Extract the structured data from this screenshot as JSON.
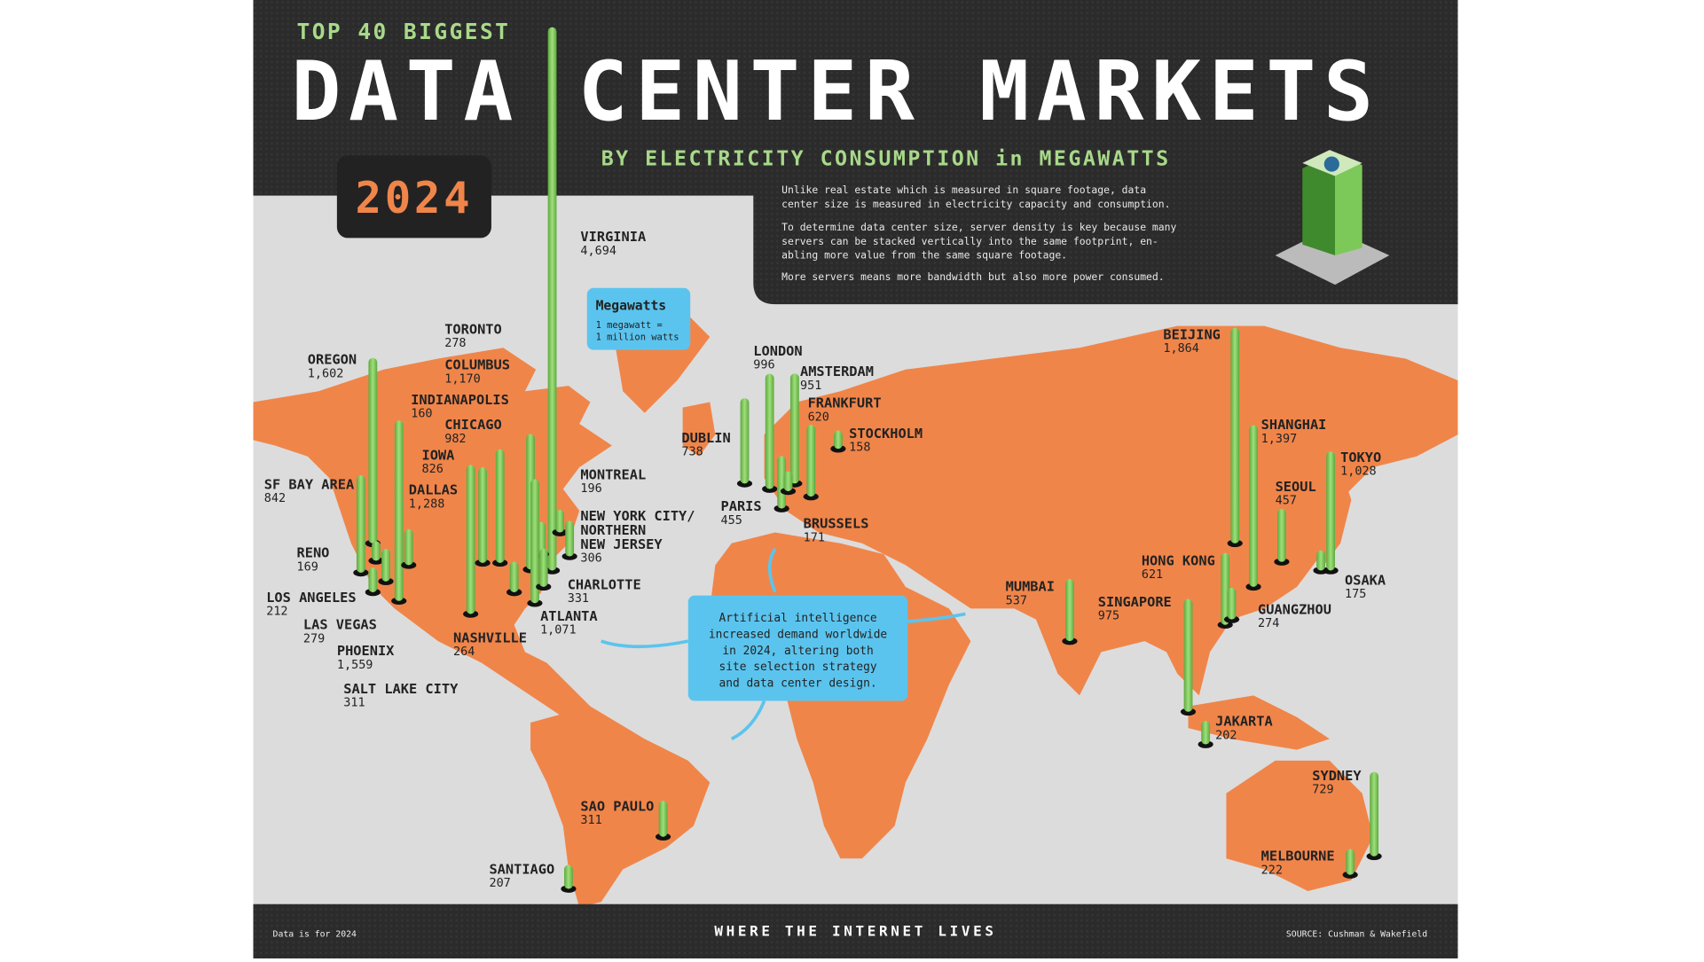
{
  "header": {
    "kicker": "TOP 40 BIGGEST",
    "title": "DATA CENTER MARKETS",
    "subtitle": "BY ELECTRICITY CONSUMPTION in MEGAWATTS",
    "year": "2024"
  },
  "intro": [
    "Unlike real estate which is measured in square footage, data",
    "center size is measured in electricity capacity and consumption.",
    "To determine data center size, server density is key because many",
    "servers can be stacked vertically into the same footprint, en-",
    "abling more value from the same square footage.",
    "More servers means more bandwidth but also more power consumed."
  ],
  "legend": {
    "title": "Megawatts",
    "line1": "1 megawatt =",
    "line2": "1 million watts"
  },
  "callout": [
    "Artificial intelligence",
    "increased demand worldwide",
    "in 2024, altering both",
    "site selection strategy",
    "and data center design."
  ],
  "footer": {
    "note": "Data is for 2024",
    "brand": "WHERE THE INTERNET LIVES",
    "source": "SOURCE: Cushman & Wakefield"
  },
  "colors": {
    "background": "#2b2b2b",
    "ocean": "#d9d9d9",
    "land": "#f0854a",
    "bar": "#7cc95a",
    "year": "#f0854a",
    "kicker": "#a8d98a",
    "callout": "#5bc4ee"
  },
  "chart_data": {
    "type": "bar",
    "unit": "Megawatts",
    "markets": [
      {
        "name": "VIRGINIA",
        "value": 4694
      },
      {
        "name": "OREGON",
        "value": 1602
      },
      {
        "name": "SF BAY AREA",
        "value": 842
      },
      {
        "name": "RENO",
        "value": 169
      },
      {
        "name": "LOS ANGELES",
        "value": 212
      },
      {
        "name": "LAS VEGAS",
        "value": 279
      },
      {
        "name": "PHOENIX",
        "value": 1559
      },
      {
        "name": "SALT LAKE CITY",
        "value": 311
      },
      {
        "name": "DALLAS",
        "value": 1288
      },
      {
        "name": "IOWA",
        "value": 826
      },
      {
        "name": "CHICAGO",
        "value": 982
      },
      {
        "name": "INDIANAPOLIS",
        "value": 160
      },
      {
        "name": "COLUMBUS",
        "value": 1170
      },
      {
        "name": "TORONTO",
        "value": 278
      },
      {
        "name": "ATLANTA",
        "value": 1071
      },
      {
        "name": "NASHVILLE",
        "value": 264
      },
      {
        "name": "CHARLOTTE",
        "value": 331
      },
      {
        "name": "MONTREAL",
        "value": 196
      },
      {
        "name": "NEW YORK CITY/ NORTHERN NEW JERSEY",
        "value": 306
      },
      {
        "name": "DUBLIN",
        "value": 738
      },
      {
        "name": "LONDON",
        "value": 996
      },
      {
        "name": "AMSTERDAM",
        "value": 951
      },
      {
        "name": "FRANKFURT",
        "value": 620
      },
      {
        "name": "PARIS",
        "value": 455
      },
      {
        "name": "BRUSSELS",
        "value": 171
      },
      {
        "name": "STOCKHOLM",
        "value": 158
      },
      {
        "name": "BEIJING",
        "value": 1864
      },
      {
        "name": "SHANGHAI",
        "value": 1397
      },
      {
        "name": "SEOUL",
        "value": 457
      },
      {
        "name": "TOKYO",
        "value": 1028
      },
      {
        "name": "OSAKA",
        "value": 175
      },
      {
        "name": "HONG KONG",
        "value": 621
      },
      {
        "name": "GUANGZHOU",
        "value": 274
      },
      {
        "name": "MUMBAI",
        "value": 537
      },
      {
        "name": "SINGAPORE",
        "value": 975
      },
      {
        "name": "JAKARTA",
        "value": 202
      },
      {
        "name": "SYDNEY",
        "value": 729
      },
      {
        "name": "MELBOURNE",
        "value": 222
      },
      {
        "name": "SAO PAULO",
        "value": 311
      },
      {
        "name": "SANTIAGO",
        "value": 207
      }
    ]
  }
}
